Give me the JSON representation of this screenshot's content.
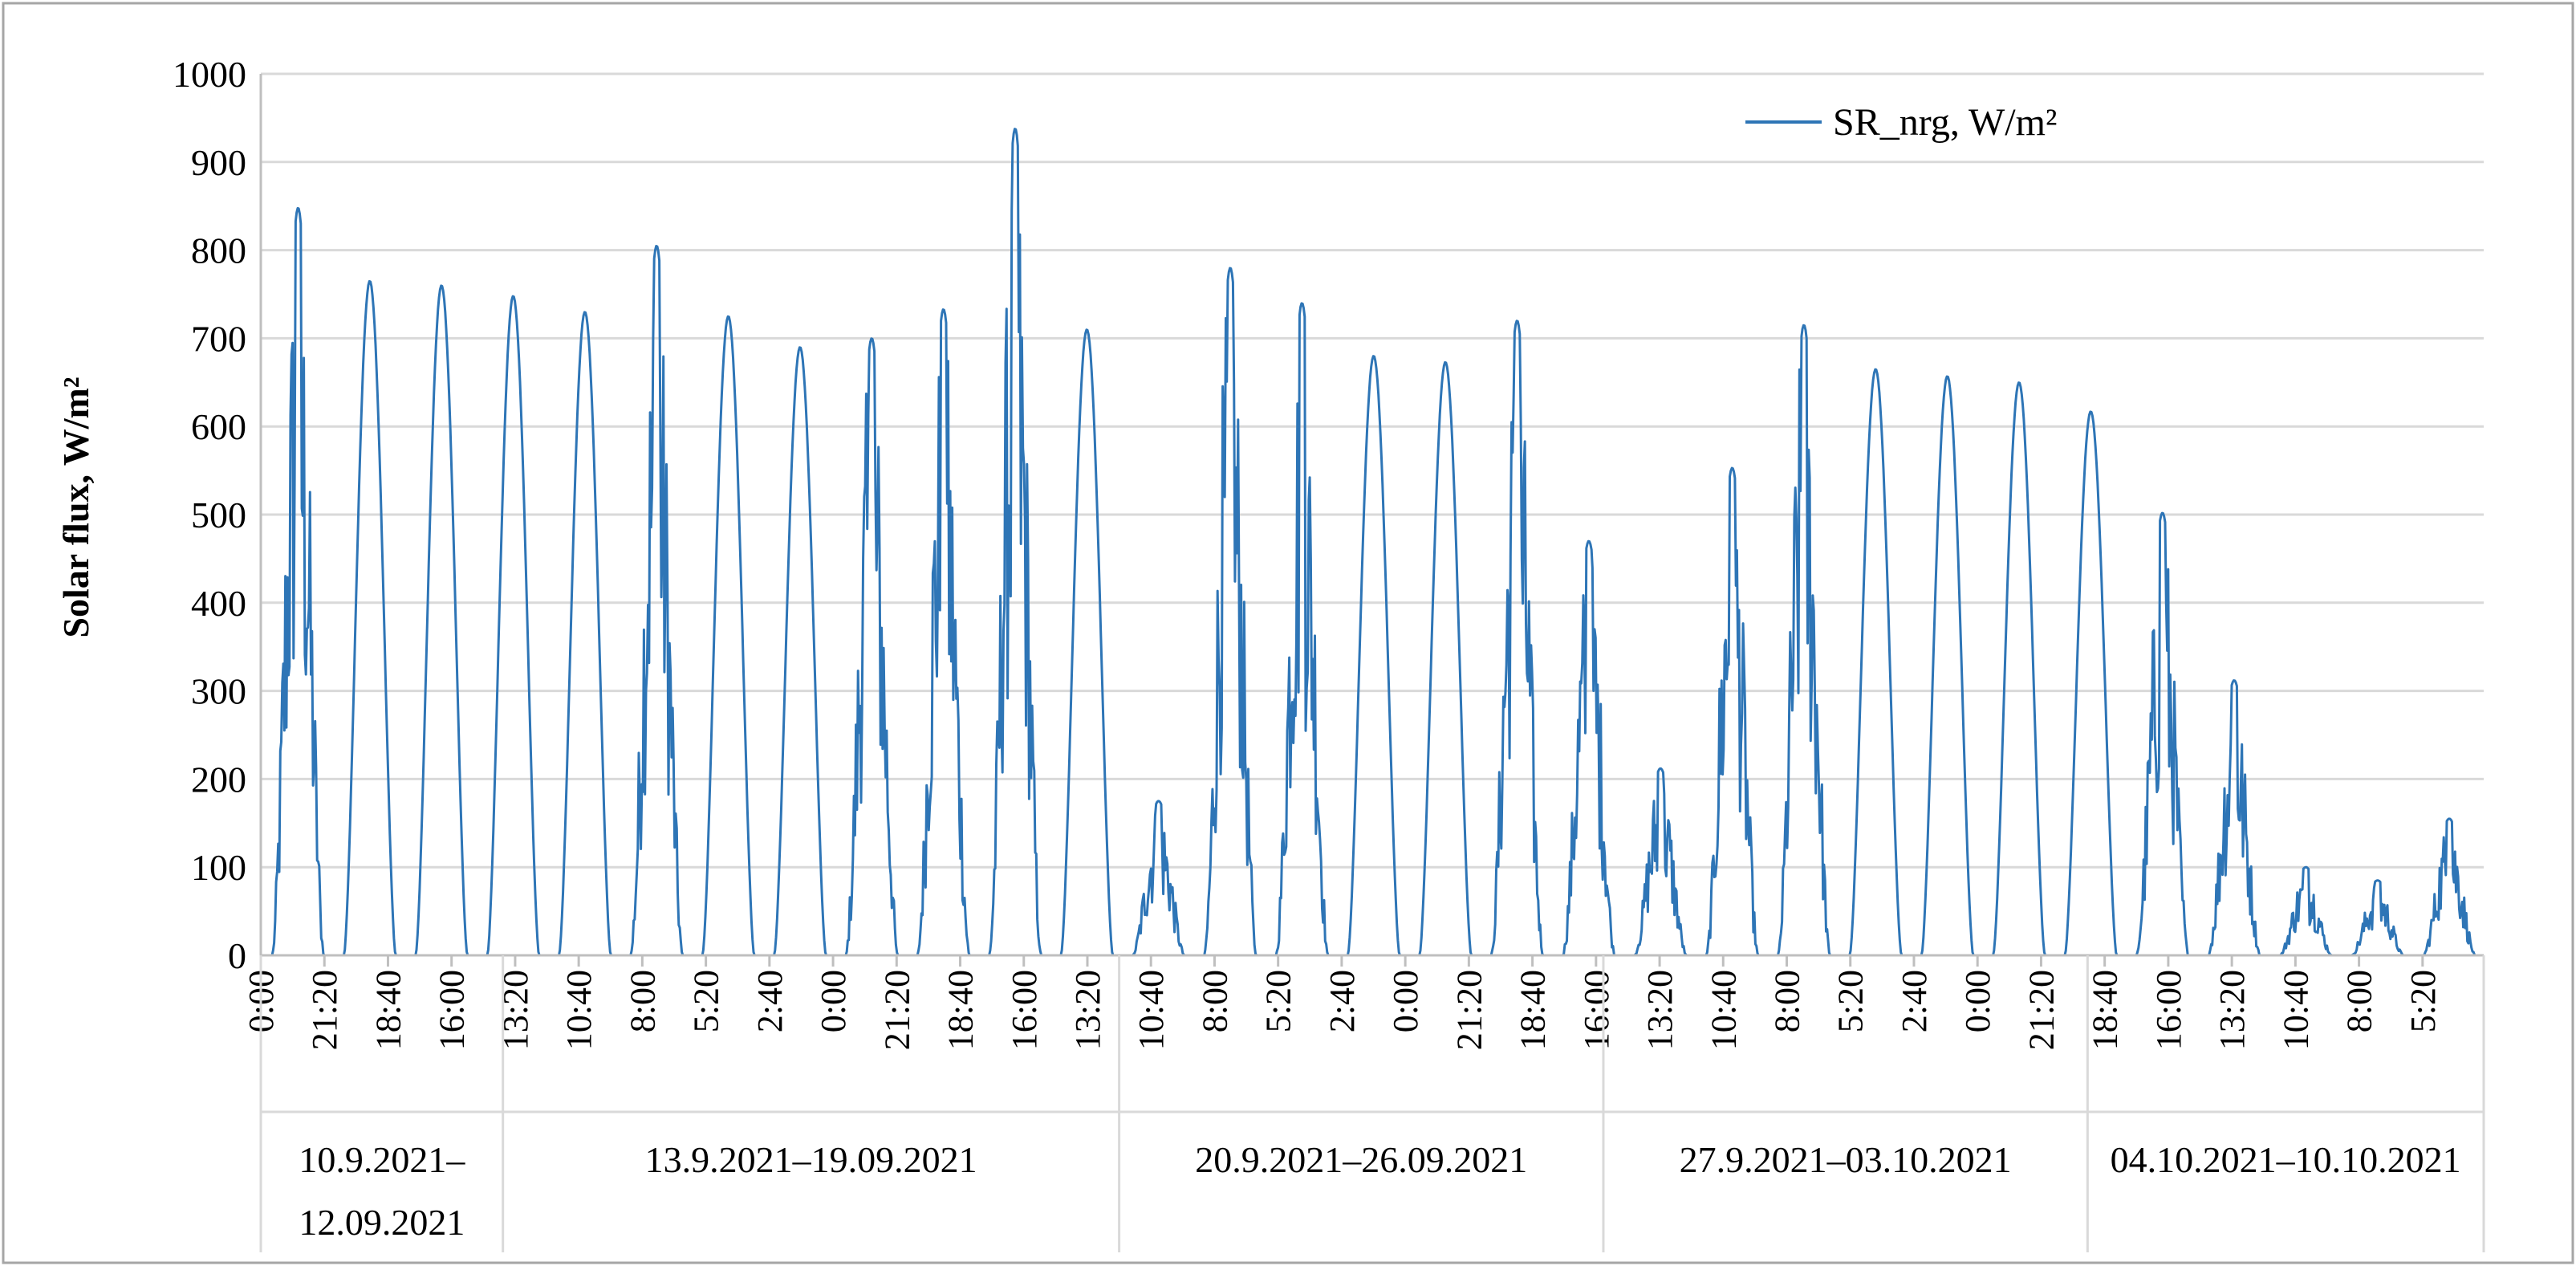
{
  "chart_data": {
    "type": "line",
    "ylabel": "Solar flux, W/m²",
    "xlabel": "",
    "ylim": [
      0,
      1000
    ],
    "yticks": [
      "0",
      "100",
      "200",
      "300",
      "400",
      "500",
      "600",
      "700",
      "800",
      "900",
      "1000"
    ],
    "grid": true,
    "legend_position": "top-right",
    "series_color": "#2e75b6",
    "x_tick_labels": [
      "0:00",
      "21:20",
      "18:40",
      "16:00",
      "13:20",
      "10:40",
      "8:00",
      "5:20",
      "2:40",
      "0:00",
      "21:20",
      "18:40",
      "16:00",
      "13:20",
      "10:40",
      "8:00",
      "5:20",
      "2:40",
      "0:00",
      "21:20",
      "18:40",
      "16:00",
      "13:20",
      "10:40",
      "8:00",
      "5:20",
      "2:40",
      "0:00",
      "21:20",
      "18:40",
      "16:00",
      "13:20",
      "10:40",
      "8:00",
      "5:20"
    ],
    "x_tick_days": [
      0,
      2.889,
      5.778,
      8.667,
      11.556,
      14.444,
      17.333,
      20.222,
      23.111,
      26,
      28.889,
      31.778,
      34.667,
      37.556,
      40.444,
      43.333,
      46.222,
      49.111,
      52,
      54.889,
      57.778,
      60.667,
      63.556,
      66.444,
      69.333,
      72.222,
      75.111,
      78,
      80.889,
      83.778,
      86.667,
      89.556,
      92.444,
      95.333,
      98.222
    ],
    "groups": [
      {
        "label_lines": [
          "10.9.2021–",
          "12.09.2021"
        ],
        "start_day": 0,
        "end_day": 11
      },
      {
        "label_lines": [
          "13.9.2021–19.09.2021"
        ],
        "start_day": 11,
        "end_day": 39
      },
      {
        "label_lines": [
          "20.9.2021–26.09.2021"
        ],
        "start_day": 39,
        "end_day": 61
      },
      {
        "label_lines": [
          "27.9.2021–03.10.2021"
        ],
        "start_day": 61,
        "end_day": 83
      },
      {
        "label_lines": [
          "04.10.2021–10.10.2021"
        ],
        "start_day": 83,
        "end_day": 101
      }
    ],
    "x_range_days": [
      0,
      101
    ],
    "series": [
      {
        "name": "SR_nrg, W/m²",
        "daily_peaks": [
          {
            "day": 0,
            "peak": 848,
            "cloudy": true
          },
          {
            "day": 1,
            "peak": 765,
            "cloudy": false
          },
          {
            "day": 2,
            "peak": 760,
            "cloudy": false
          },
          {
            "day": 3,
            "peak": 748,
            "cloudy": false
          },
          {
            "day": 4,
            "peak": 730,
            "cloudy": false
          },
          {
            "day": 5,
            "peak": 805,
            "cloudy": true
          },
          {
            "day": 6,
            "peak": 725,
            "cloudy": false
          },
          {
            "day": 7,
            "peak": 690,
            "cloudy": false
          },
          {
            "day": 8,
            "peak": 700,
            "cloudy": true
          },
          {
            "day": 9,
            "peak": 733,
            "cloudy": true
          },
          {
            "day": 10,
            "peak": 938,
            "cloudy": true
          },
          {
            "day": 11,
            "peak": 710,
            "cloudy": false
          },
          {
            "day": 12,
            "peak": 175,
            "cloudy": true
          },
          {
            "day": 13,
            "peak": 780,
            "cloudy": true
          },
          {
            "day": 14,
            "peak": 740,
            "cloudy": true
          },
          {
            "day": 15,
            "peak": 680,
            "cloudy": false
          },
          {
            "day": 16,
            "peak": 673,
            "cloudy": false
          },
          {
            "day": 17,
            "peak": 720,
            "cloudy": true
          },
          {
            "day": 18,
            "peak": 470,
            "cloudy": true
          },
          {
            "day": 19,
            "peak": 212,
            "cloudy": true
          },
          {
            "day": 20,
            "peak": 553,
            "cloudy": true
          },
          {
            "day": 21,
            "peak": 715,
            "cloudy": true
          },
          {
            "day": 22,
            "peak": 665,
            "cloudy": false
          },
          {
            "day": 23,
            "peak": 657,
            "cloudy": false
          },
          {
            "day": 24,
            "peak": 650,
            "cloudy": false
          },
          {
            "day": 25,
            "peak": 617,
            "cloudy": false
          },
          {
            "day": 26,
            "peak": 502,
            "cloudy": true
          },
          {
            "day": 27,
            "peak": 312,
            "cloudy": true
          },
          {
            "day": 28,
            "peak": 100,
            "cloudy": true
          },
          {
            "day": 29,
            "peak": 85,
            "cloudy": true
          },
          {
            "day": 30,
            "peak": 155,
            "cloudy": true
          }
        ]
      }
    ]
  }
}
